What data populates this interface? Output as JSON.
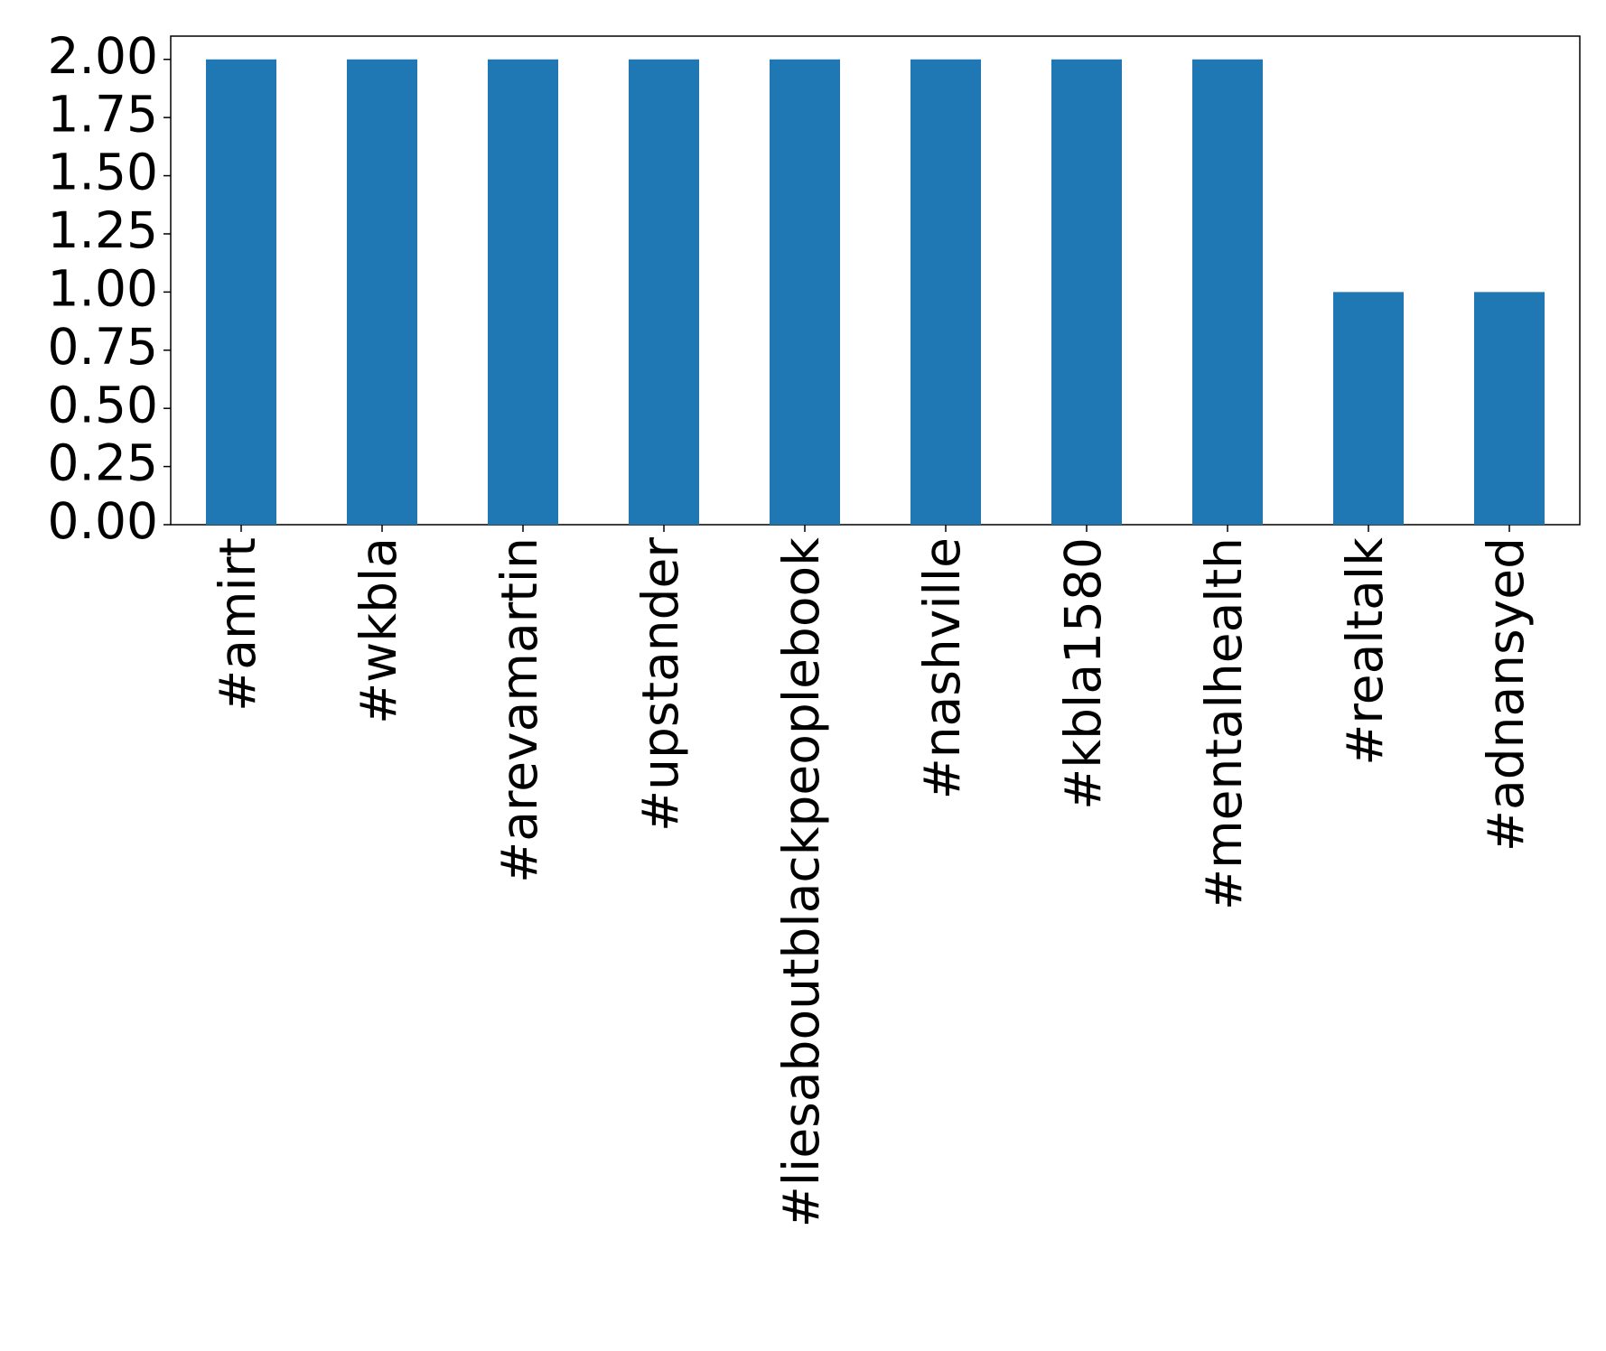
{
  "chart_data": {
    "type": "bar",
    "categories": [
      "#amirt",
      "#wkbla",
      "#arevamartin",
      "#upstander",
      "#liesaboutblackpeoplebook",
      "#nashville",
      "#kbla1580",
      "#mentalhealth",
      "#realtalk",
      "#adnansyed"
    ],
    "values": [
      2,
      2,
      2,
      2,
      2,
      2,
      2,
      2,
      1,
      1
    ],
    "color": "#1f77b4",
    "ylim": [
      0,
      2.1
    ],
    "yticks": [
      {
        "value": 0,
        "label": "0.00"
      },
      {
        "value": 0.25,
        "label": "0.25"
      },
      {
        "value": 0.5,
        "label": "0.50"
      },
      {
        "value": 0.75,
        "label": "0.75"
      },
      {
        "value": 1,
        "label": "1.00"
      },
      {
        "value": 1.25,
        "label": "1.25"
      },
      {
        "value": 1.5,
        "label": "1.50"
      },
      {
        "value": 1.75,
        "label": "1.75"
      },
      {
        "value": 2,
        "label": "2.00"
      }
    ],
    "grid": false
  }
}
